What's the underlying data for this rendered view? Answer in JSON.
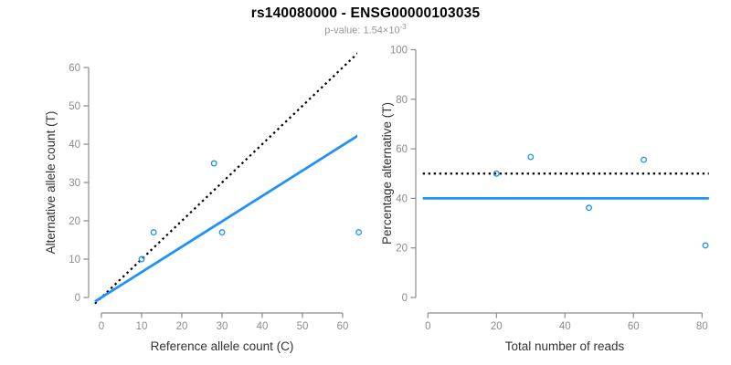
{
  "title": "rs140080000 - ENSG00000103035",
  "subtitle": {
    "prefix": "p-value: 1.54×10",
    "exponent": "-3"
  },
  "colors": {
    "line_blue": "#1E90FF",
    "point_blue": "#1E90FF",
    "dotted_black": "#000000",
    "axis_gray": "#8C8C8C",
    "tick_label_gray": "#8C8C8C",
    "axis_title_color": "#333333",
    "title_color": "#000000",
    "subtitle_gray": "#979797",
    "background": "#FFFFFF"
  },
  "chart_data": [
    {
      "type": "scatter",
      "position": "left",
      "xlabel": "Reference allele count (C)",
      "ylabel": "Alternative allele count (T)",
      "xlim": [
        0,
        64
      ],
      "ylim": [
        0,
        64
      ],
      "xticks": [
        0,
        10,
        20,
        30,
        40,
        50,
        60
      ],
      "yticks": [
        0,
        10,
        20,
        30,
        40,
        50,
        60
      ],
      "grid": false,
      "legend": "none",
      "points": [
        [
          10,
          10
        ],
        [
          13,
          17
        ],
        [
          28,
          35
        ],
        [
          30,
          17
        ],
        [
          64,
          17
        ]
      ],
      "lines": [
        {
          "name": "identity-line",
          "style": "dotted",
          "slope": 1,
          "intercept": 0
        },
        {
          "name": "fitted-ratio-line",
          "style": "solid",
          "slope": 0.662,
          "intercept": 0
        }
      ]
    },
    {
      "type": "scatter",
      "position": "right",
      "xlabel": "Total number of reads",
      "ylabel": "Percentage alternative (T)",
      "xlim": [
        0,
        81
      ],
      "ylim": [
        0,
        100
      ],
      "xticks": [
        0,
        20,
        40,
        60,
        80
      ],
      "yticks": [
        0,
        20,
        40,
        60,
        80,
        100
      ],
      "grid": false,
      "legend": "none",
      "points": [
        [
          20,
          50
        ],
        [
          30,
          56.7
        ],
        [
          63,
          55.6
        ],
        [
          47,
          36.2
        ],
        [
          81,
          21
        ]
      ],
      "lines": [
        {
          "name": "expected-50pct-line",
          "style": "dotted",
          "slope": 0,
          "intercept": 50
        },
        {
          "name": "observed-40pct-line",
          "style": "solid",
          "slope": 0,
          "intercept": 40
        }
      ]
    }
  ]
}
